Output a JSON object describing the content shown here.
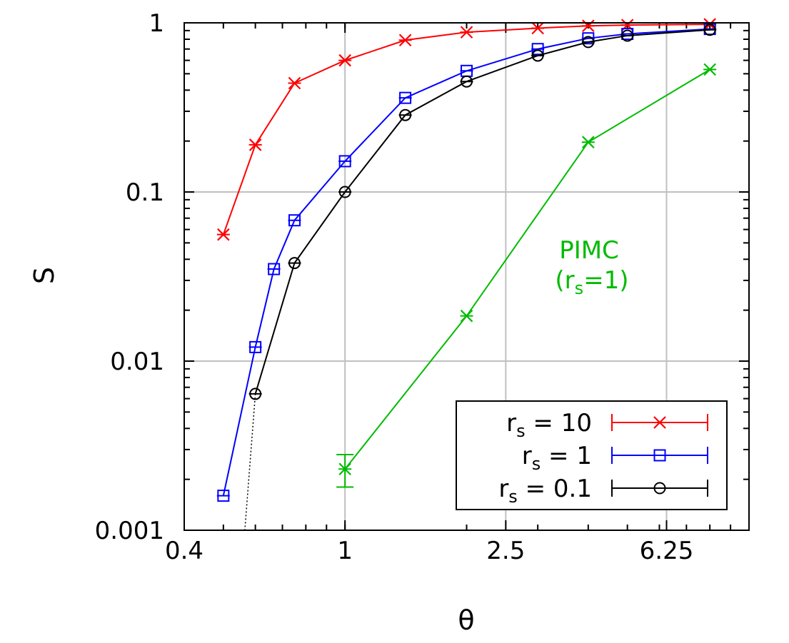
{
  "chart_data": {
    "type": "line",
    "xscale": "log",
    "yscale": "log",
    "xlabel": "θ",
    "ylabel": "S",
    "xlim": [
      0.4,
      10.0
    ],
    "ylim": [
      0.001,
      1
    ],
    "xticks": [
      {
        "value": 0.4,
        "label": "0.4"
      },
      {
        "value": 1,
        "label": "1"
      },
      {
        "value": 2.5,
        "label": "2.5"
      },
      {
        "value": 6.25,
        "label": "6.25"
      }
    ],
    "yticks": [
      {
        "value": 0.001,
        "label": "0.001"
      },
      {
        "value": 0.01,
        "label": "0.01"
      },
      {
        "value": 0.1,
        "label": "0.1"
      },
      {
        "value": 1,
        "label": "1"
      }
    ],
    "grid": true,
    "legend_position": "bottom-right",
    "series": [
      {
        "name": "r_s = 10",
        "legend_main": "r",
        "legend_sub": "s",
        "legend_rest": " = 10",
        "color": "#ff0000",
        "marker": "cross",
        "x": [
          0.5,
          0.6,
          0.75,
          1.0,
          1.41,
          2.0,
          3.0,
          4.0,
          5.0,
          8.0
        ],
        "y": [
          0.056,
          0.19,
          0.44,
          0.6,
          0.79,
          0.88,
          0.93,
          0.96,
          0.97,
          0.98
        ]
      },
      {
        "name": "r_s = 1",
        "legend_main": "r",
        "legend_sub": "s",
        "legend_rest": " = 1",
        "color": "#0000ff",
        "marker": "square",
        "x": [
          0.5,
          0.6,
          0.667,
          0.75,
          1.0,
          1.41,
          2.0,
          3.0,
          4.0,
          5.0,
          8.0
        ],
        "y": [
          0.0016,
          0.0121,
          0.035,
          0.068,
          0.152,
          0.36,
          0.52,
          0.7,
          0.81,
          0.86,
          0.92
        ]
      },
      {
        "name": "r_s = 0.1",
        "legend_main": "r",
        "legend_sub": "s",
        "legend_rest": " = 0.1",
        "color": "#000000",
        "marker": "circle",
        "x": [
          0.6,
          0.75,
          1.0,
          1.41,
          2.0,
          3.0,
          4.0,
          5.0,
          8.0
        ],
        "y": [
          0.0064,
          0.038,
          0.1,
          0.285,
          0.45,
          0.64,
          0.77,
          0.84,
          0.91
        ],
        "extrapolation": {
          "x": [
            0.6,
            0.565
          ],
          "y": [
            0.0064,
            0.001
          ]
        }
      },
      {
        "name": "PIMC (r_s=1)",
        "color": "#00bb00",
        "marker": "cross-errorbar",
        "in_legend": false,
        "x": [
          1.0,
          2.0,
          4.0,
          8.0
        ],
        "y": [
          0.0023,
          0.0185,
          0.197,
          0.53
        ],
        "error": [
          [
            0.0018,
            0.0028
          ],
          null,
          null,
          null
        ]
      }
    ],
    "annotation": {
      "line1": "PIMC",
      "line2_main": "(r",
      "line2_sub": "s",
      "line2_rest": "=1)",
      "color": "#00bb00"
    }
  }
}
